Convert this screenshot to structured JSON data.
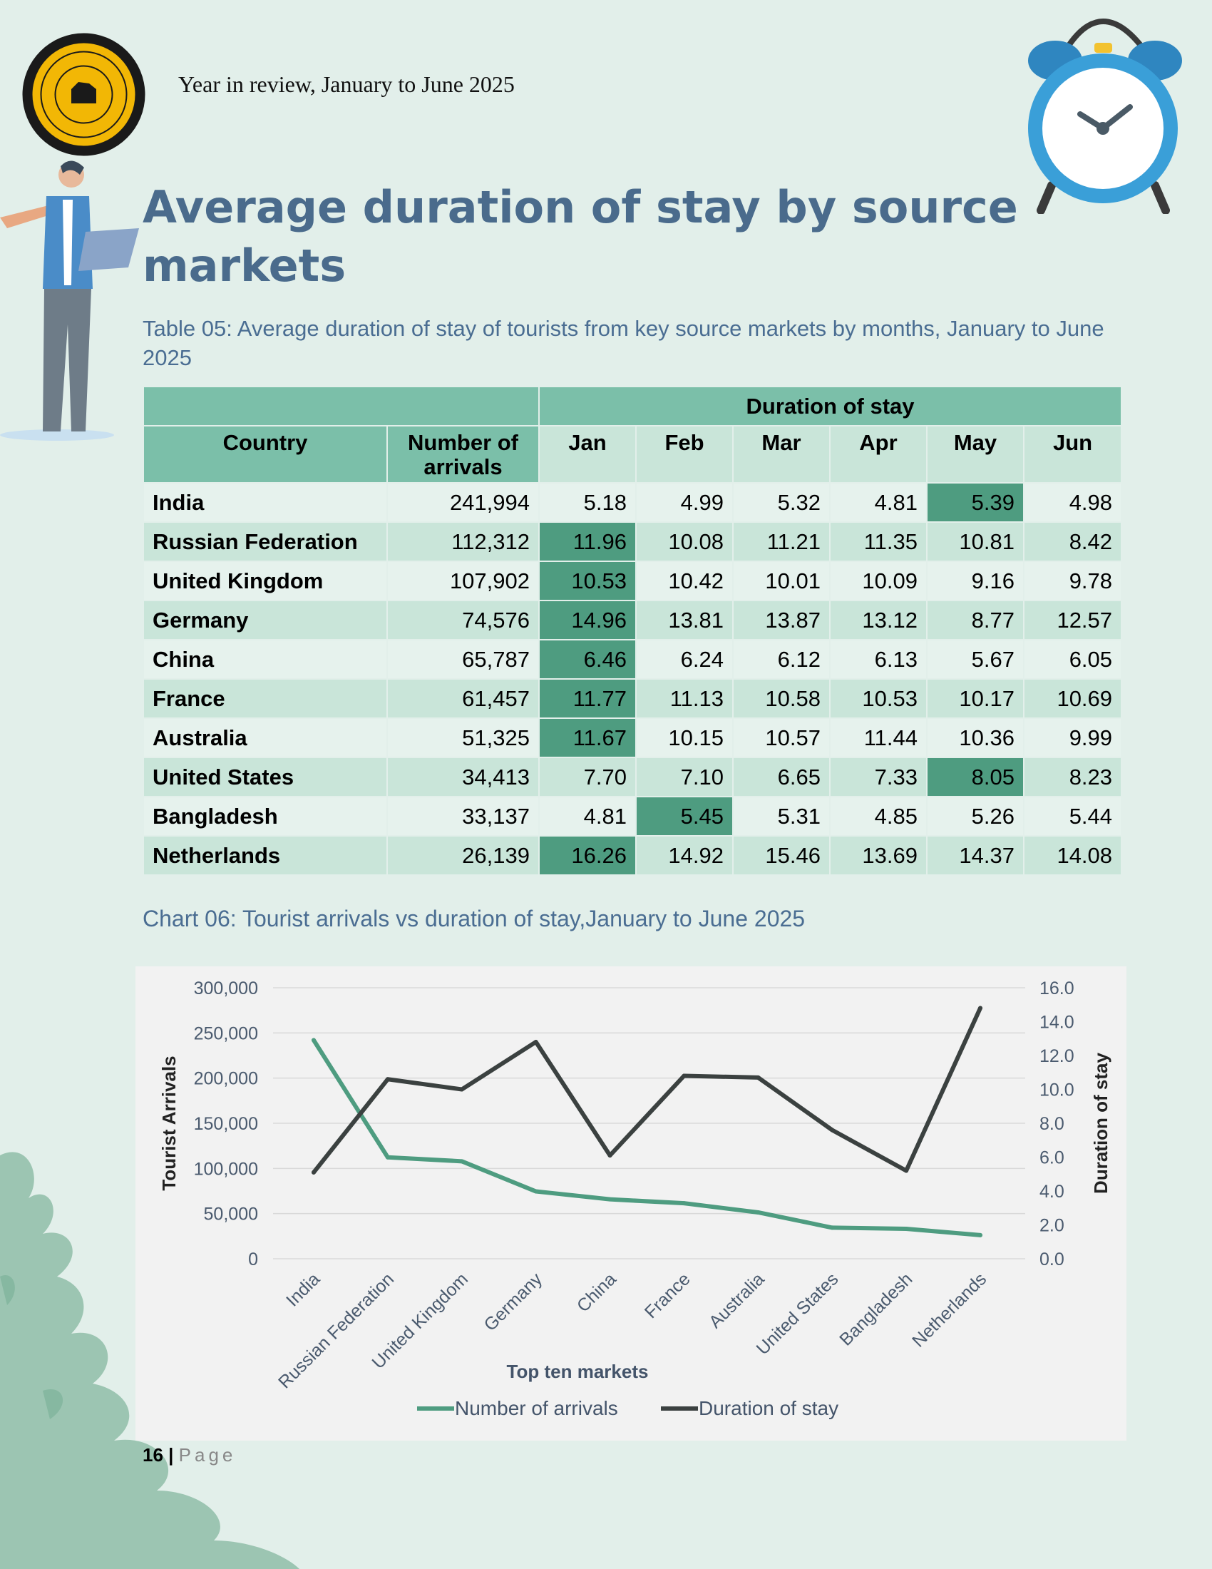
{
  "header": {
    "text": "Year in review, January to June 2025"
  },
  "title": "Average duration of stay by source markets",
  "table": {
    "caption": "Table 05: Average duration of stay of tourists from key source markets by months, January to June 2025",
    "group_header": "Duration of stay",
    "columns": [
      "Country",
      "Number of arrivals",
      "Jan",
      "Feb",
      "Mar",
      "Apr",
      "May",
      "Jun"
    ],
    "rows": [
      {
        "country": "India",
        "arrivals": "241,994",
        "values": [
          "5.18",
          "4.99",
          "5.32",
          "4.81",
          "5.39",
          "4.98"
        ],
        "highlight": 4
      },
      {
        "country": "Russian Federation",
        "arrivals": "112,312",
        "values": [
          "11.96",
          "10.08",
          "11.21",
          "11.35",
          "10.81",
          "8.42"
        ],
        "highlight": 0
      },
      {
        "country": "United Kingdom",
        "arrivals": "107,902",
        "values": [
          "10.53",
          "10.42",
          "10.01",
          "10.09",
          "9.16",
          "9.78"
        ],
        "highlight": 0
      },
      {
        "country": "Germany",
        "arrivals": "74,576",
        "values": [
          "14.96",
          "13.81",
          "13.87",
          "13.12",
          "8.77",
          "12.57"
        ],
        "highlight": 0
      },
      {
        "country": "China",
        "arrivals": "65,787",
        "values": [
          "6.46",
          "6.24",
          "6.12",
          "6.13",
          "5.67",
          "6.05"
        ],
        "highlight": 0
      },
      {
        "country": "France",
        "arrivals": "61,457",
        "values": [
          "11.77",
          "11.13",
          "10.58",
          "10.53",
          "10.17",
          "10.69"
        ],
        "highlight": 0
      },
      {
        "country": "Australia",
        "arrivals": "51,325",
        "values": [
          "11.67",
          "10.15",
          "10.57",
          "11.44",
          "10.36",
          "9.99"
        ],
        "highlight": 0
      },
      {
        "country": "United States",
        "arrivals": "34,413",
        "values": [
          "7.70",
          "7.10",
          "6.65",
          "7.33",
          "8.05",
          "8.23"
        ],
        "highlight": 4
      },
      {
        "country": "Bangladesh",
        "arrivals": "33,137",
        "values": [
          "4.81",
          "5.45",
          "5.31",
          "4.85",
          "5.26",
          "5.44"
        ],
        "highlight": 1
      },
      {
        "country": "Netherlands",
        "arrivals": "26,139",
        "values": [
          "16.26",
          "14.92",
          "15.46",
          "13.69",
          "14.37",
          "14.08"
        ],
        "highlight": 0
      }
    ]
  },
  "chart_caption": "Chart 06: Tourist arrivals vs duration of stay,January to June 2025",
  "chart_data": {
    "type": "line",
    "categories": [
      "India",
      "Russian Federation",
      "United Kingdom",
      "Germany",
      "China",
      "France",
      "Australia",
      "United States",
      "Bangladesh",
      "Netherlands"
    ],
    "series": [
      {
        "name": "Number of arrivals",
        "axis": "left",
        "color": "#4e9c80",
        "values": [
          241994,
          112312,
          107902,
          74576,
          65787,
          61457,
          51325,
          34413,
          33137,
          26139
        ]
      },
      {
        "name": "Duration of stay",
        "axis": "right",
        "color": "#3b4140",
        "values": [
          5.1,
          10.6,
          10.0,
          12.8,
          6.1,
          10.8,
          10.7,
          7.6,
          5.2,
          14.8
        ]
      }
    ],
    "xlabel": "Top ten markets",
    "ylabel": "Tourist Arrivals",
    "y2label": "Duration of stay",
    "ylim": [
      0,
      300000
    ],
    "y2lim": [
      0,
      16
    ],
    "yticks": [
      "0",
      "50,000",
      "100,000",
      "150,000",
      "200,000",
      "250,000",
      "300,000"
    ],
    "y2ticks": [
      "0.0",
      "2.0",
      "4.0",
      "6.0",
      "8.0",
      "10.0",
      "12.0",
      "14.0",
      "16.0"
    ],
    "grid": true,
    "legend": "bottom"
  },
  "footer": {
    "page_number": "16",
    "separator": "|",
    "page_word": "Page"
  }
}
